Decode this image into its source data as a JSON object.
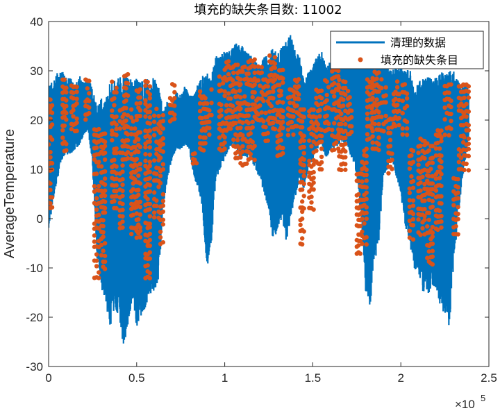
{
  "chart_data": {
    "type": "line",
    "title": "填充的缺失条目数: 11002",
    "xlabel": "",
    "ylabel": "AverageTemperature",
    "xlim": [
      0,
      250000
    ],
    "ylim": [
      -30,
      40
    ],
    "x_ticks": [
      0,
      50000,
      100000,
      150000,
      200000,
      250000
    ],
    "x_tick_labels": [
      "0",
      "0.5",
      "1",
      "1.5",
      "2",
      "2.5"
    ],
    "x_exponent_label": "×10",
    "x_exponent_power": "5",
    "y_ticks": [
      -30,
      -20,
      -10,
      0,
      10,
      20,
      30,
      40
    ],
    "y_tick_labels": [
      "-30",
      "-20",
      "-10",
      "0",
      "10",
      "20",
      "30",
      "40"
    ],
    "grid": false,
    "legend_position": "top-right",
    "series": [
      {
        "name": "清理的数据",
        "style": "line",
        "color": "#0072BD",
        "envelope": {
          "x": [
            0,
            2500,
            5000,
            7500,
            10000,
            12500,
            15000,
            17500,
            20000,
            22500,
            25000,
            27500,
            30000,
            32500,
            35000,
            37500,
            40000,
            42500,
            45000,
            47500,
            50000,
            52500,
            55000,
            57500,
            60000,
            62500,
            65000,
            67500,
            70000,
            72500,
            75000,
            77500,
            80000,
            82500,
            85000,
            87500,
            90000,
            92500,
            95000,
            97500,
            100000,
            102500,
            105000,
            107500,
            110000,
            112500,
            115000,
            117500,
            120000,
            122500,
            125000,
            127500,
            130000,
            132500,
            135000,
            137500,
            140000,
            142500,
            145000,
            147500,
            150000,
            152500,
            155000,
            157500,
            160000,
            162500,
            165000,
            167500,
            170000,
            172500,
            175000,
            177500,
            180000,
            182500,
            185000,
            187500,
            190000,
            192500,
            195000,
            197500,
            200000,
            202500,
            205000,
            207500,
            210000,
            212500,
            215000,
            217500,
            220000,
            222500,
            225000,
            227500,
            230000,
            232500,
            235000,
            237500,
            238500
          ],
          "high": [
            27,
            28,
            30,
            30,
            29,
            29,
            27,
            29,
            28,
            29,
            26,
            23,
            25,
            24,
            28,
            28,
            29,
            29,
            29,
            28,
            29,
            28,
            29,
            28,
            29,
            27,
            22,
            24,
            23,
            26,
            25,
            27,
            25,
            25,
            28,
            29,
            30,
            29,
            33,
            33,
            34,
            34,
            35,
            36,
            35,
            34,
            33,
            32,
            31,
            33,
            33,
            35,
            34,
            35,
            36,
            38,
            34,
            33,
            28,
            30,
            31,
            33,
            34,
            31,
            32,
            33,
            35,
            34,
            34,
            33,
            34,
            32,
            33,
            36,
            37,
            36,
            33,
            31,
            30,
            31,
            31,
            30,
            31,
            27,
            28,
            29,
            29,
            29,
            29,
            30,
            30,
            30,
            30,
            28,
            27,
            27,
            26
          ],
          "low": [
            -2,
            3,
            8,
            12,
            13,
            13,
            14,
            15,
            17,
            18,
            10,
            -8,
            -14,
            -18,
            -22,
            -18,
            -20,
            -26,
            -22,
            -16,
            -22,
            -20,
            -18,
            -15,
            -16,
            -12,
            2,
            8,
            12,
            14,
            14,
            15,
            14,
            8,
            6,
            0,
            -10,
            -5,
            8,
            10,
            12,
            14,
            15,
            13,
            11,
            12,
            12,
            10,
            8,
            5,
            2,
            -5,
            -2,
            0,
            -5,
            0,
            4,
            8,
            6,
            10,
            12,
            14,
            15,
            12,
            14,
            14,
            15,
            15,
            14,
            12,
            8,
            0,
            -15,
            -18,
            -10,
            -5,
            8,
            10,
            12,
            8,
            5,
            -2,
            -5,
            -10,
            -12,
            -15,
            -16,
            -14,
            -14,
            -18,
            -20,
            -22,
            -10,
            0,
            8,
            14,
            16
          ]
        }
      },
      {
        "name": "填充的缺失条目",
        "style": "markers",
        "color": "#D95319",
        "clusters": [
          {
            "x": [
              0,
              2000
            ],
            "y": [
              2,
              24
            ]
          },
          {
            "x": [
              8000,
              10000
            ],
            "y": [
              14,
              28
            ]
          },
          {
            "x": [
              13000,
              16000
            ],
            "y": [
              18,
              27
            ]
          },
          {
            "x": [
              21000,
              23000
            ],
            "y": [
              20,
              28
            ]
          },
          {
            "x": [
              26000,
              28500
            ],
            "y": [
              -12,
              18
            ]
          },
          {
            "x": [
              30000,
              32000
            ],
            "y": [
              -10,
              17
            ]
          },
          {
            "x": [
              36000,
              38500
            ],
            "y": [
              2,
              28
            ]
          },
          {
            "x": [
              40500,
              42000
            ],
            "y": [
              -2,
              22
            ]
          },
          {
            "x": [
              43000,
              45000
            ],
            "y": [
              12,
              29
            ]
          },
          {
            "x": [
              47000,
              49000
            ],
            "y": [
              -3,
              22
            ]
          },
          {
            "x": [
              50000,
              52000
            ],
            "y": [
              -4,
              26
            ]
          },
          {
            "x": [
              55000,
              57500
            ],
            "y": [
              -12,
              28
            ]
          },
          {
            "x": [
              60000,
              62500
            ],
            "y": [
              0,
              22
            ]
          },
          {
            "x": [
              63500,
              65000
            ],
            "y": [
              -5,
              21
            ]
          },
          {
            "x": [
              69000,
              71500
            ],
            "y": [
              20,
              27
            ]
          },
          {
            "x": [
              82000,
              84000
            ],
            "y": [
              11,
              13
            ]
          },
          {
            "x": [
              86000,
              89000
            ],
            "y": [
              14,
              26
            ]
          },
          {
            "x": [
              90000,
              92500
            ],
            "y": [
              17,
              26
            ]
          },
          {
            "x": [
              97000,
              100000
            ],
            "y": [
              14,
              30
            ]
          },
          {
            "x": [
              101000,
              104500
            ],
            "y": [
              18,
              32
            ]
          },
          {
            "x": [
              105000,
              108500
            ],
            "y": [
              12,
              31
            ]
          },
          {
            "x": [
              109000,
              112500
            ],
            "y": [
              11,
              32
            ]
          },
          {
            "x": [
              113500,
              117000
            ],
            "y": [
              12,
              32
            ]
          },
          {
            "x": [
              118000,
              121000
            ],
            "y": [
              20,
              31
            ]
          },
          {
            "x": [
              122000,
              124500
            ],
            "y": [
              16,
              28
            ]
          },
          {
            "x": [
              125500,
              128500
            ],
            "y": [
              18,
              33
            ]
          },
          {
            "x": [
              130000,
              133000
            ],
            "y": [
              13,
              30
            ]
          },
          {
            "x": [
              136000,
              139000
            ],
            "y": [
              17,
              26
            ]
          },
          {
            "x": [
              140000,
              142000
            ],
            "y": [
              19,
              28
            ]
          },
          {
            "x": [
              143000,
              145000
            ],
            "y": [
              -5,
              22
            ]
          },
          {
            "x": [
              148000,
              150500
            ],
            "y": [
              2,
              22
            ]
          },
          {
            "x": [
              152000,
              155000
            ],
            "y": [
              10,
              26
            ]
          },
          {
            "x": [
              157000,
              159000
            ],
            "y": [
              18,
              28
            ]
          },
          {
            "x": [
              161000,
              164500
            ],
            "y": [
              14,
              30
            ]
          },
          {
            "x": [
              165000,
              168500
            ],
            "y": [
              10,
              28
            ]
          },
          {
            "x": [
              170000,
              172000
            ],
            "y": [
              16,
              26
            ]
          },
          {
            "x": [
              175000,
              177000
            ],
            "y": [
              -7,
              9
            ]
          },
          {
            "x": [
              178000,
              180500
            ],
            "y": [
              -5,
              14
            ]
          },
          {
            "x": [
              181000,
              183500
            ],
            "y": [
              16,
              28
            ]
          },
          {
            "x": [
              184000,
              187500
            ],
            "y": [
              14,
              31
            ]
          },
          {
            "x": [
              189000,
              191500
            ],
            "y": [
              18,
              28
            ]
          },
          {
            "x": [
              193000,
              195000
            ],
            "y": [
              9,
              20
            ]
          },
          {
            "x": [
              196000,
              199000
            ],
            "y": [
              19,
              28
            ]
          },
          {
            "x": [
              201000,
              203500
            ],
            "y": [
              17,
              27
            ]
          },
          {
            "x": [
              205000,
              207000
            ],
            "y": [
              -4,
              14
            ]
          },
          {
            "x": [
              210000,
              213500
            ],
            "y": [
              -3,
              16
            ]
          },
          {
            "x": [
              215000,
              218000
            ],
            "y": [
              -9,
              15
            ]
          },
          {
            "x": [
              220000,
              223000
            ],
            "y": [
              -2,
              18
            ]
          },
          {
            "x": [
              225000,
              228500
            ],
            "y": [
              17,
              27
            ]
          },
          {
            "x": [
              230000,
              232500
            ],
            "y": [
              -3,
              8
            ]
          },
          {
            "x": [
              233000,
              235500
            ],
            "y": [
              10,
              27
            ]
          },
          {
            "x": [
              236000,
              238500
            ],
            "y": [
              10,
              27
            ]
          }
        ]
      }
    ]
  }
}
